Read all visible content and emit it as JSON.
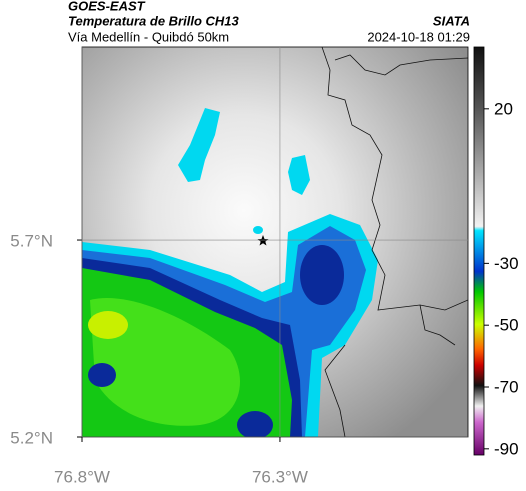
{
  "header": {
    "satellite": "GOES-EAST",
    "title": "Temperatura de Brillo CH13",
    "subtitle": "Vía Medellín - Quibdó 50km",
    "source": "SIATA",
    "datetime": "2024-10-18 01:29"
  },
  "map": {
    "lonlim": [
      -76.8,
      -75.825
    ],
    "latlim": [
      5.2,
      6.19
    ],
    "lat_ticks": [
      {
        "value": 5.7,
        "label": "5.7°N"
      },
      {
        "value": 5.2,
        "label": "5.2°N"
      }
    ],
    "lon_ticks": [
      {
        "value": -76.8,
        "label": "76.8°W"
      },
      {
        "value": -76.3,
        "label": "76.3°W"
      }
    ],
    "grid": true
  },
  "colorbar": {
    "lim": [
      -92,
      40
    ],
    "ticks": [
      20,
      -30,
      -50,
      -70,
      -90
    ]
  }
}
